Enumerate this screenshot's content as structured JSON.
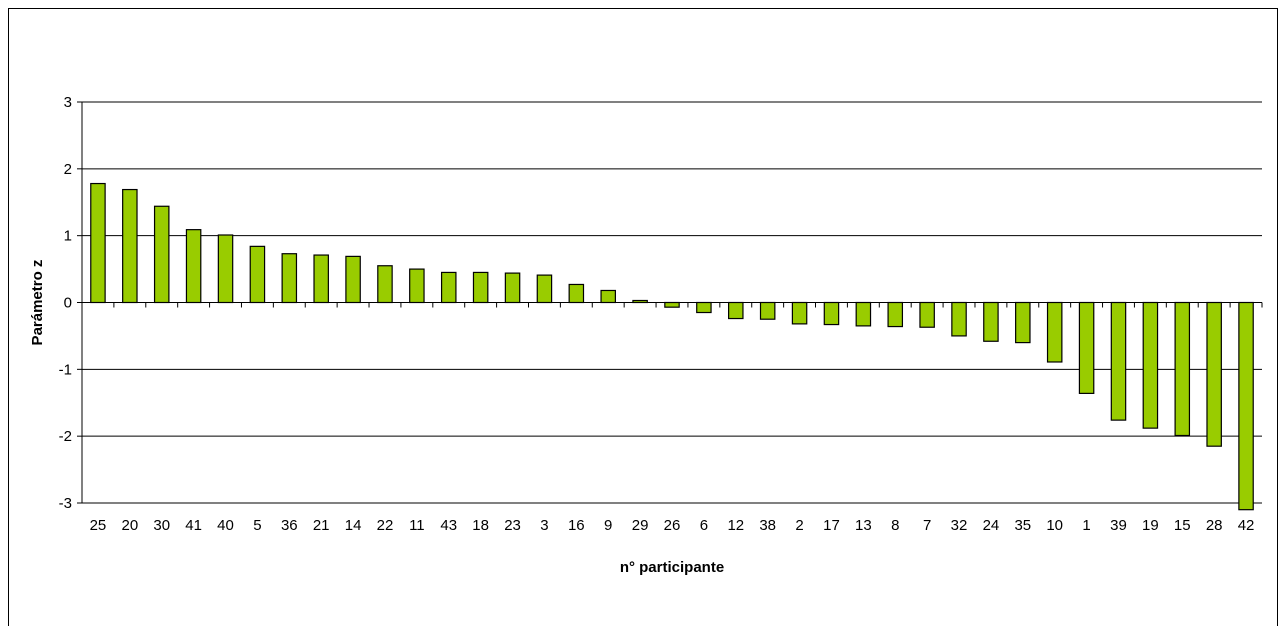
{
  "chart_data": {
    "type": "bar",
    "categories": [
      "25",
      "20",
      "30",
      "41",
      "40",
      "5",
      "36",
      "21",
      "14",
      "22",
      "11",
      "43",
      "18",
      "23",
      "3",
      "16",
      "9",
      "29",
      "26",
      "6",
      "12",
      "38",
      "2",
      "17",
      "13",
      "8",
      "7",
      "32",
      "24",
      "35",
      "10",
      "1",
      "39",
      "19",
      "15",
      "28",
      "42"
    ],
    "values": [
      1.78,
      1.69,
      1.44,
      1.09,
      1.01,
      0.84,
      0.73,
      0.71,
      0.69,
      0.55,
      0.5,
      0.45,
      0.45,
      0.44,
      0.41,
      0.27,
      0.18,
      0.03,
      -0.07,
      -0.15,
      -0.24,
      -0.25,
      -0.32,
      -0.33,
      -0.35,
      -0.36,
      -0.37,
      -0.5,
      -0.58,
      -0.6,
      -0.89,
      -1.36,
      -1.76,
      -1.88,
      -1.99,
      -2.15,
      -3.1
    ],
    "title": "",
    "xlabel": "n° participante",
    "ylabel": "Parámetro z",
    "ylim": [
      -3,
      3
    ],
    "yticks": [
      "-3",
      "-2",
      "-1",
      "0",
      "1",
      "2",
      "3"
    ],
    "grid": true,
    "bar_color": "#99CC00"
  }
}
